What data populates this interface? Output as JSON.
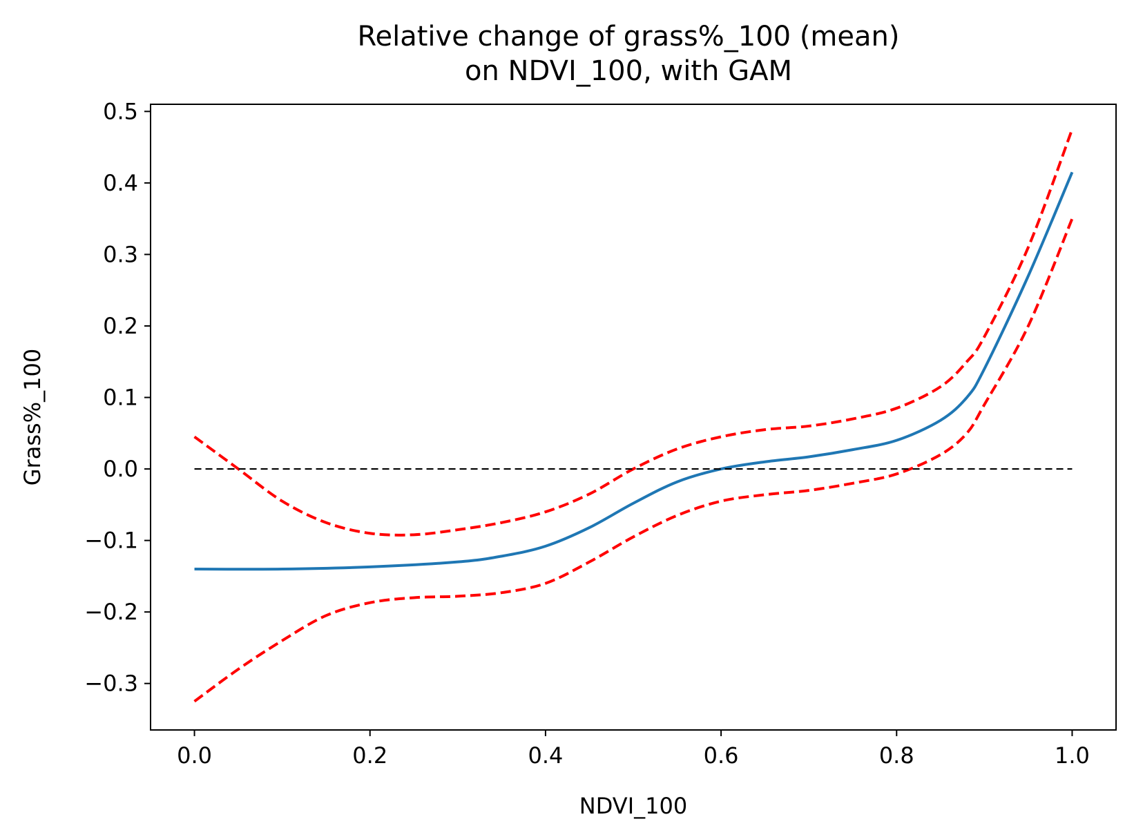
{
  "chart_data": {
    "type": "line",
    "title": "Relative change of grass%_100 (mean)",
    "subtitle": "on NDVI_100, with GAM",
    "xlabel": "NDVI_100",
    "ylabel": "Grass%_100",
    "xlim": [
      -0.05,
      1.05
    ],
    "ylim": [
      -0.365,
      0.51
    ],
    "grid": false,
    "xticks": [
      0.0,
      0.2,
      0.4,
      0.6,
      0.8,
      1.0
    ],
    "xtick_labels": [
      "0.0",
      "0.2",
      "0.4",
      "0.6",
      "0.8",
      "1.0"
    ],
    "yticks": [
      -0.3,
      -0.2,
      -0.1,
      0.0,
      0.1,
      0.2,
      0.3,
      0.4,
      0.5
    ],
    "ytick_labels": [
      "−0.3",
      "−0.2",
      "−0.1",
      "0.0",
      "0.1",
      "0.2",
      "0.3",
      "0.4",
      "0.5"
    ],
    "series": [
      {
        "style": "solid",
        "color": "#1f77b4",
        "x": [
          0.0,
          0.1,
          0.2,
          0.3,
          0.35,
          0.4,
          0.45,
          0.5,
          0.55,
          0.6,
          0.65,
          0.7,
          0.75,
          0.8,
          0.85,
          0.88,
          0.9,
          0.95,
          1.0
        ],
        "y": [
          -0.14,
          -0.14,
          -0.137,
          -0.13,
          -0.122,
          -0.108,
          -0.082,
          -0.048,
          -0.018,
          0.0,
          0.01,
          0.017,
          0.027,
          0.04,
          0.068,
          0.1,
          0.14,
          0.27,
          0.415
        ]
      },
      {
        "style": "dashed",
        "color": "#ff0000",
        "x": [
          0.0,
          0.05,
          0.1,
          0.15,
          0.2,
          0.25,
          0.3,
          0.35,
          0.4,
          0.45,
          0.5,
          0.55,
          0.6,
          0.65,
          0.7,
          0.75,
          0.8,
          0.85,
          0.88,
          0.9,
          0.95,
          1.0
        ],
        "y": [
          0.045,
          0.0,
          -0.045,
          -0.075,
          -0.09,
          -0.092,
          -0.085,
          -0.075,
          -0.06,
          -0.035,
          0.0,
          0.028,
          0.045,
          0.055,
          0.06,
          0.07,
          0.085,
          0.115,
          0.15,
          0.185,
          0.31,
          0.475
        ]
      },
      {
        "style": "dashed",
        "color": "#ff0000",
        "x": [
          0.0,
          0.05,
          0.1,
          0.15,
          0.2,
          0.25,
          0.3,
          0.35,
          0.4,
          0.45,
          0.5,
          0.55,
          0.6,
          0.65,
          0.7,
          0.75,
          0.8,
          0.85,
          0.88,
          0.9,
          0.95,
          1.0
        ],
        "y": [
          -0.325,
          -0.28,
          -0.24,
          -0.205,
          -0.187,
          -0.18,
          -0.178,
          -0.173,
          -0.16,
          -0.13,
          -0.095,
          -0.065,
          -0.045,
          -0.036,
          -0.03,
          -0.02,
          -0.007,
          0.02,
          0.05,
          0.09,
          0.2,
          0.35
        ]
      },
      {
        "style": "dashed",
        "color": "#000000",
        "x": [
          0.0,
          1.0
        ],
        "y": [
          0.0,
          0.0
        ]
      }
    ]
  }
}
